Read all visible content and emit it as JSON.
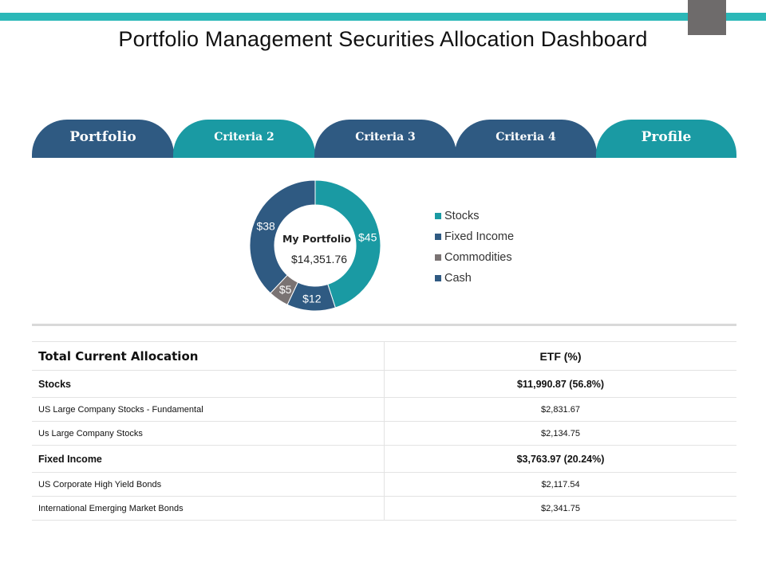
{
  "title": "Portfolio Management Securities Allocation Dashboard",
  "colors": {
    "teal": "#1a9aa3",
    "navy": "#2f5a82",
    "gray": "#7a7373",
    "top_bar": "#2bb8b8",
    "corner_square": "#6e6b6b"
  },
  "tabs": [
    {
      "label": "Portfolio",
      "style": "dark"
    },
    {
      "label": "Criteria  2",
      "style": "teal"
    },
    {
      "label": "Criteria  3",
      "style": "dark"
    },
    {
      "label": "Criteria  4",
      "style": "dark"
    },
    {
      "label": "Profile",
      "style": "teal"
    }
  ],
  "chart_data": {
    "type": "pie",
    "subtype": "donut",
    "center_title": "My Portfolio",
    "center_value": "$14,351.76",
    "legend_position": "right",
    "categories": [
      "Stocks",
      "Fixed Income",
      "Commodities",
      "Cash"
    ],
    "values": [
      45,
      12,
      5,
      38
    ],
    "data_labels": [
      "$45",
      "$12",
      "$5",
      "$38"
    ],
    "colors": [
      "#1a9aa3",
      "#2f5a82",
      "#7a7373",
      "#2f5a82"
    ]
  },
  "table": {
    "headers": [
      "Total Current Allocation",
      "ETF (%)"
    ],
    "rows": [
      {
        "kind": "sec",
        "label": "Stocks",
        "value": "$11,990.87 (56.8%)"
      },
      {
        "kind": "row",
        "label": "US Large Company Stocks - Fundamental",
        "value": "$2,831.67"
      },
      {
        "kind": "row",
        "label": "Us Large Company Stocks",
        "value": "$2,134.75"
      },
      {
        "kind": "sec",
        "label": "Fixed Income",
        "value": "$3,763.97 (20.24%)"
      },
      {
        "kind": "row",
        "label": "US Corporate High Yield Bonds",
        "value": "$2,117.54"
      },
      {
        "kind": "row",
        "label": "International Emerging Market Bonds",
        "value": "$2,341.75"
      }
    ]
  }
}
